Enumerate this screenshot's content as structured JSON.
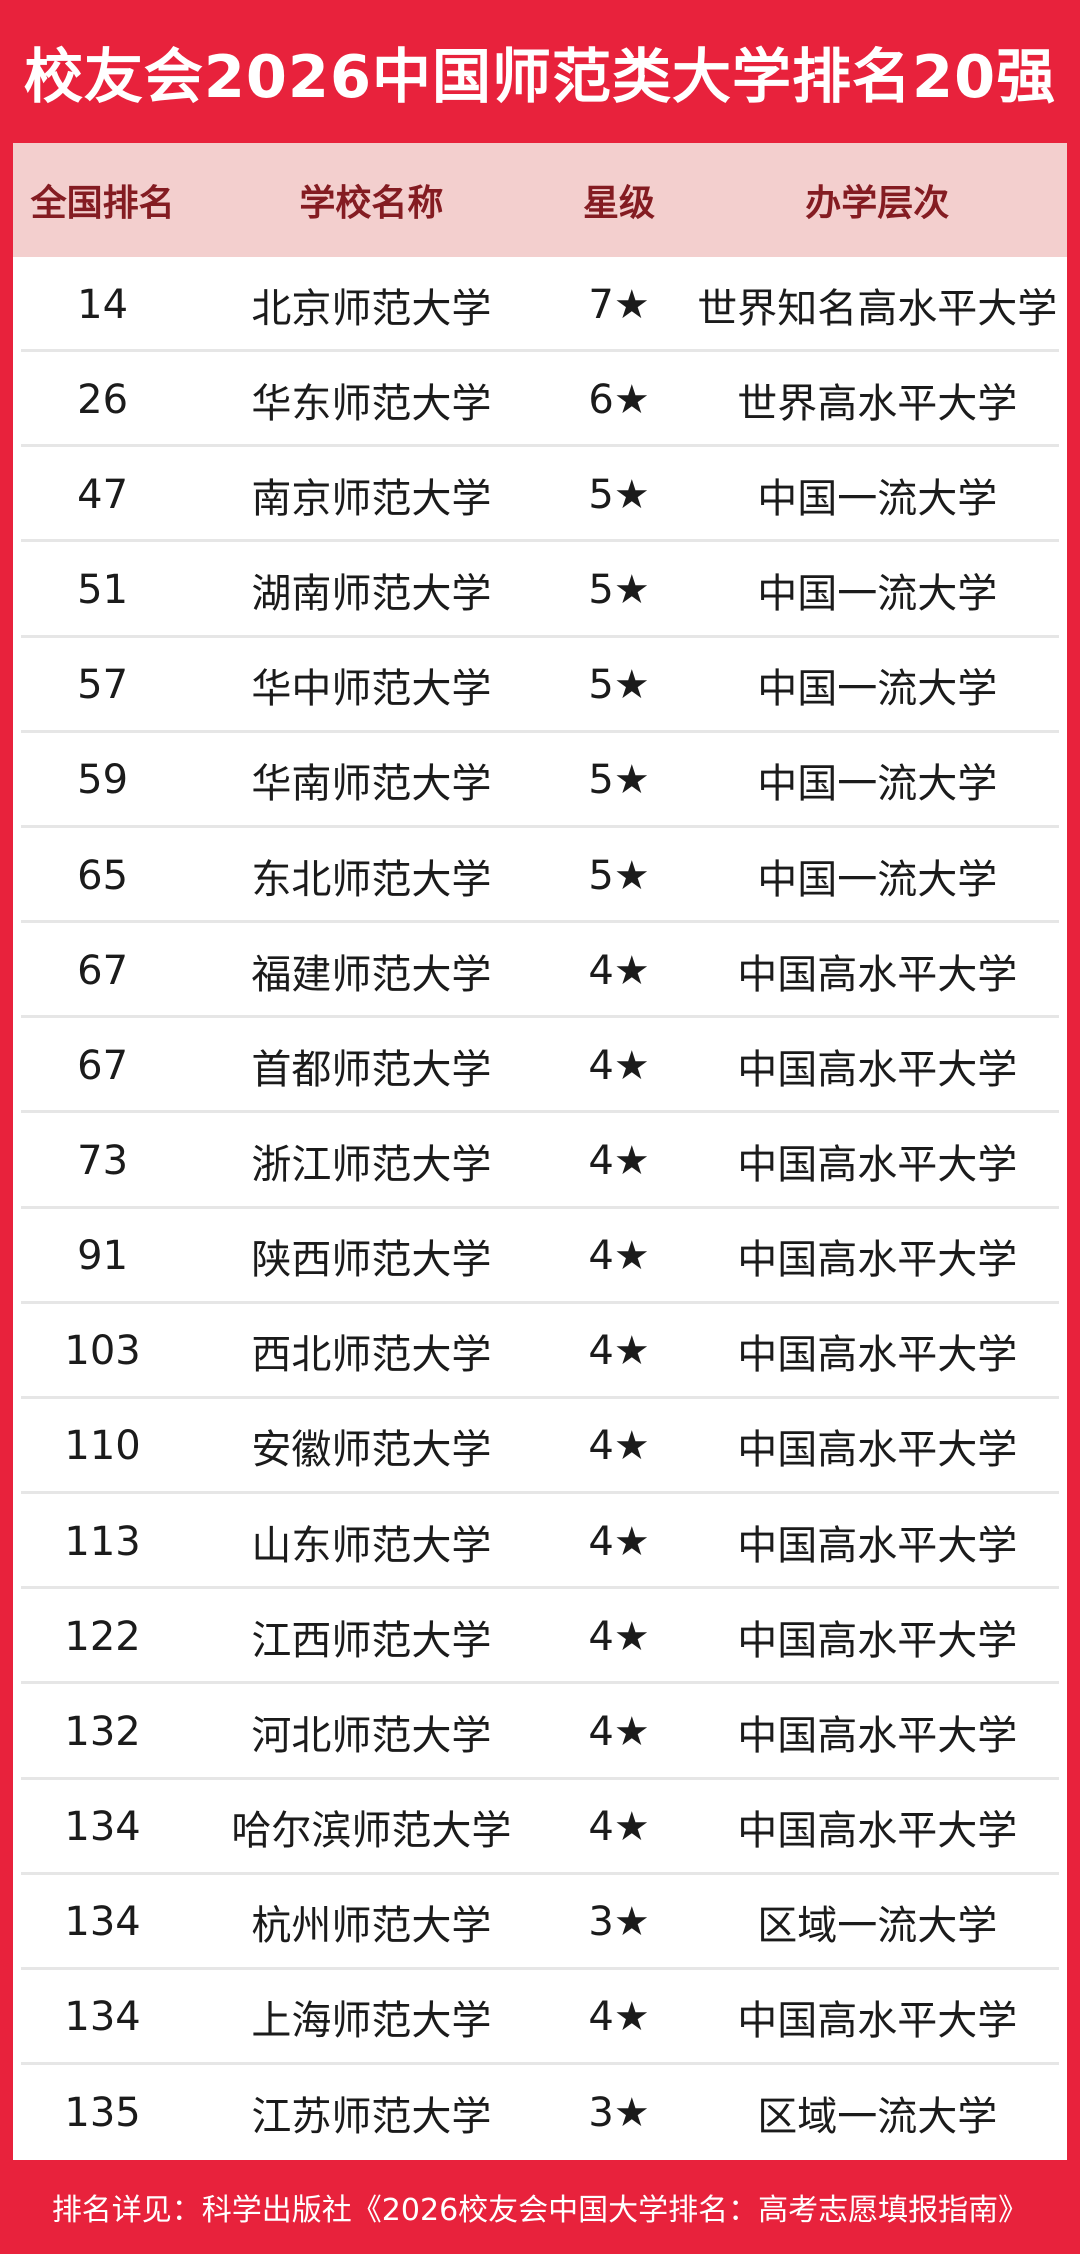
{
  "page": {
    "title": "校友会2026中国师范类大学排名20强",
    "footer_note": "排名详见：科学出版社《2026校友会中国大学排名：高考志愿填报指南》"
  },
  "colors": {
    "brand_red": "#e8223c",
    "header_pink": "#f3cfce",
    "header_text_dark_red": "#841c22",
    "row_text": "#1b1b1b",
    "row_separator": "#e6e6e6",
    "panel_background": "#ffffff",
    "title_text": "#ffffff"
  },
  "table": {
    "columns": [
      "全国排名",
      "学校名称",
      "星级",
      "办学层次"
    ],
    "rows": [
      {
        "rank": "14",
        "school": "北京师范大学",
        "stars": "7★",
        "level": "世界知名高水平大学"
      },
      {
        "rank": "26",
        "school": "华东师范大学",
        "stars": "6★",
        "level": "世界高水平大学"
      },
      {
        "rank": "47",
        "school": "南京师范大学",
        "stars": "5★",
        "level": "中国一流大学"
      },
      {
        "rank": "51",
        "school": "湖南师范大学",
        "stars": "5★",
        "level": "中国一流大学"
      },
      {
        "rank": "57",
        "school": "华中师范大学",
        "stars": "5★",
        "level": "中国一流大学"
      },
      {
        "rank": "59",
        "school": "华南师范大学",
        "stars": "5★",
        "level": "中国一流大学"
      },
      {
        "rank": "65",
        "school": "东北师范大学",
        "stars": "5★",
        "level": "中国一流大学"
      },
      {
        "rank": "67",
        "school": "福建师范大学",
        "stars": "4★",
        "level": "中国高水平大学"
      },
      {
        "rank": "67",
        "school": "首都师范大学",
        "stars": "4★",
        "level": "中国高水平大学"
      },
      {
        "rank": "73",
        "school": "浙江师范大学",
        "stars": "4★",
        "level": "中国高水平大学"
      },
      {
        "rank": "91",
        "school": "陕西师范大学",
        "stars": "4★",
        "level": "中国高水平大学"
      },
      {
        "rank": "103",
        "school": "西北师范大学",
        "stars": "4★",
        "level": "中国高水平大学"
      },
      {
        "rank": "110",
        "school": "安徽师范大学",
        "stars": "4★",
        "level": "中国高水平大学"
      },
      {
        "rank": "113",
        "school": "山东师范大学",
        "stars": "4★",
        "level": "中国高水平大学"
      },
      {
        "rank": "122",
        "school": "江西师范大学",
        "stars": "4★",
        "level": "中国高水平大学"
      },
      {
        "rank": "132",
        "school": "河北师范大学",
        "stars": "4★",
        "level": "中国高水平大学"
      },
      {
        "rank": "134",
        "school": "哈尔滨师范大学",
        "stars": "4★",
        "level": "中国高水平大学"
      },
      {
        "rank": "134",
        "school": "杭州师范大学",
        "stars": "3★",
        "level": "区域一流大学"
      },
      {
        "rank": "134",
        "school": "上海师范大学",
        "stars": "4★",
        "level": "中国高水平大学"
      },
      {
        "rank": "135",
        "school": "江苏师范大学",
        "stars": "3★",
        "level": "区域一流大学"
      }
    ]
  }
}
